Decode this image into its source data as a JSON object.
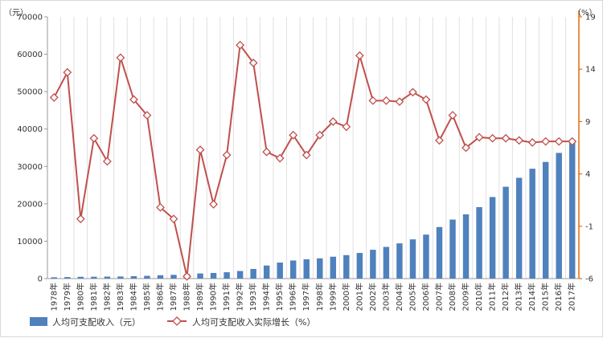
{
  "chart_data": {
    "type": "bar+line",
    "categories": [
      "1978年",
      "1979年",
      "1980年",
      "1981年",
      "1982年",
      "1983年",
      "1984年",
      "1985年",
      "1986年",
      "1987年",
      "1988年",
      "1989年",
      "1990年",
      "1991年",
      "1992年",
      "1993年",
      "1994年",
      "1995年",
      "1996年",
      "1997年",
      "1998年",
      "1999年",
      "2000年",
      "2001年",
      "2002年",
      "2003年",
      "2004年",
      "2005年",
      "2006年",
      "2007年",
      "2008年",
      "2009年",
      "2010年",
      "2011年",
      "2012年",
      "2013年",
      "2014年",
      "2015年",
      "2016年",
      "2017年"
    ],
    "series": [
      {
        "name": "人均可支配收入（元）",
        "type": "bar",
        "axis": "left",
        "color": "#4f81bd",
        "values": [
          343,
          405,
          478,
          500,
          535,
          565,
          652,
          739,
          900,
          1002,
          1180,
          1374,
          1510,
          1701,
          2027,
          2577,
          3496,
          4283,
          4839,
          5160,
          5425,
          5854,
          6280,
          6860,
          7703,
          8472,
          9422,
          10493,
          11760,
          13786,
          15781,
          17175,
          19109,
          21810,
          24565,
          26955,
          29381,
          31195,
          33616,
          36396
        ]
      },
      {
        "name": "人均可支配收入实际增长（%）",
        "type": "line",
        "axis": "right",
        "color": "#c0504d",
        "values": [
          11.3,
          13.7,
          -0.3,
          7.4,
          5.2,
          15.1,
          11.1,
          9.6,
          0.8,
          -0.3,
          -5.8,
          6.3,
          1.1,
          5.8,
          16.3,
          14.6,
          6.1,
          5.5,
          7.7,
          5.8,
          7.7,
          9.0,
          8.5,
          15.3,
          11.0,
          11.0,
          10.9,
          11.8,
          11.1,
          7.2,
          9.6,
          6.5,
          7.5,
          7.4,
          7.4,
          7.2,
          7.0,
          7.1,
          7.1,
          7.1
        ]
      }
    ],
    "y_left": {
      "unit": "（元）",
      "ylim": [
        0,
        70000
      ],
      "ticks": [
        "0",
        "10000",
        "20000",
        "30000",
        "40000",
        "50000",
        "60000",
        "70000"
      ]
    },
    "y_right": {
      "unit": "（%）",
      "ylim": [
        -6,
        19
      ],
      "ticks": [
        "-6",
        "-1",
        "4",
        "9",
        "14",
        "19"
      ]
    },
    "grid": "vertical",
    "legend": "bottom-left",
    "title": "",
    "xlabel": "",
    "ylabel": ""
  },
  "colors": {
    "bar": "#4f81bd",
    "line": "#c0504d",
    "right_axis": "#e36c09",
    "grid": "#e0e0e0"
  }
}
